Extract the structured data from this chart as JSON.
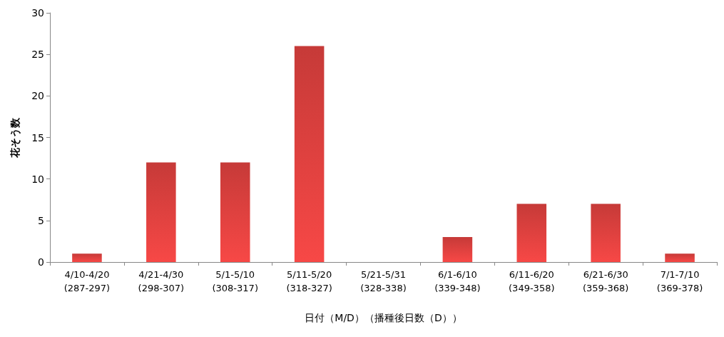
{
  "chart_data": {
    "type": "bar",
    "categories": [
      "4/10-4/20\n(287-297)",
      "4/21-4/30\n(298-307)",
      "5/1-5/10\n(308-317)",
      "5/11-5/20\n(318-327)",
      "5/21-5/31\n(328-338)",
      "6/1-6/10\n(339-348)",
      "6/11-6/20\n(349-358)",
      "6/21-6/30\n(359-368)",
      "7/1-7/10\n(369-378)"
    ],
    "values": [
      1,
      12,
      12,
      26,
      0,
      3,
      7,
      7,
      1
    ],
    "color": "#c63a38",
    "xlabel": "日付（M/D）（播種後日数（D））",
    "ylabel": "花そう数",
    "ylim": [
      0,
      30
    ],
    "yticks": [
      0,
      5,
      10,
      15,
      20,
      25,
      30
    ],
    "grid": false
  }
}
